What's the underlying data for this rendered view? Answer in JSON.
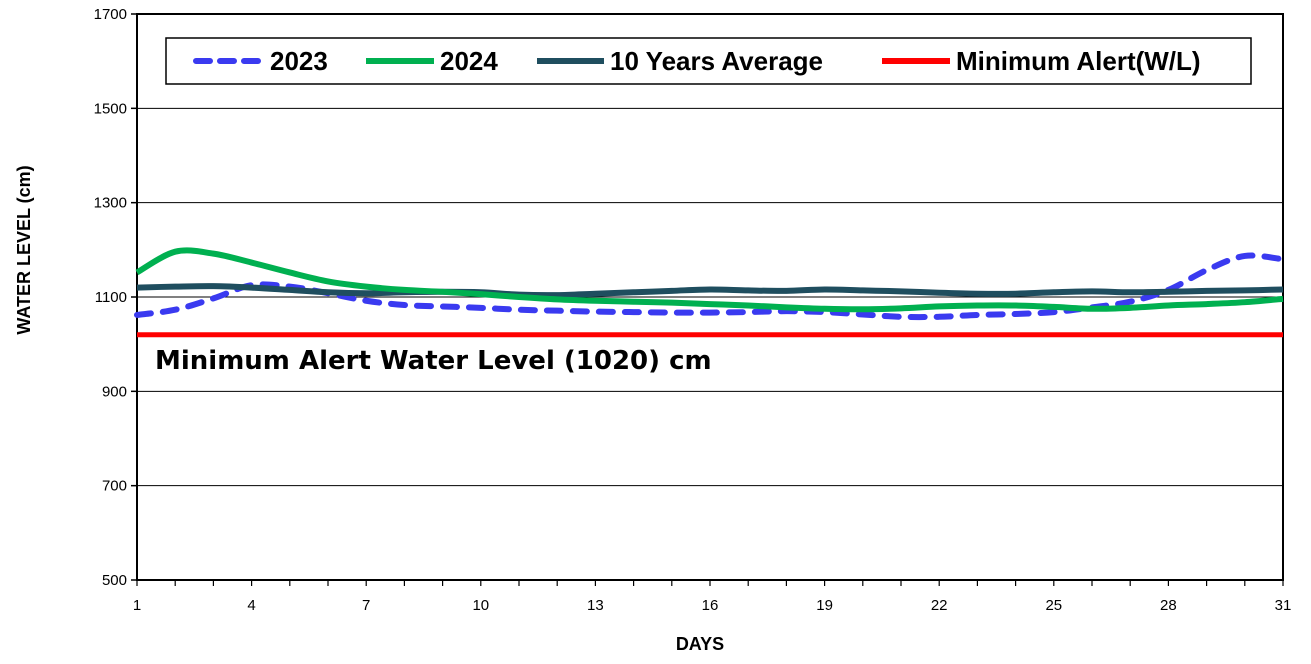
{
  "chart_data": {
    "type": "line",
    "xlabel": "DAYS",
    "ylabel": "WATER LEVEL (cm)",
    "xlim": [
      1,
      31
    ],
    "ylim": [
      500,
      1700
    ],
    "x_ticks": [
      1,
      4,
      7,
      10,
      13,
      16,
      19,
      22,
      25,
      28,
      31
    ],
    "y_ticks": [
      500,
      700,
      900,
      1100,
      1300,
      1500,
      1700
    ],
    "legend_position": "top",
    "annotation": "Minimum Alert Water Level (1020) cm",
    "series": [
      {
        "name": "2023",
        "color": "#3a3af0",
        "style": "dashed",
        "x": [
          1,
          2,
          3,
          4,
          5,
          6,
          7,
          8,
          9,
          10,
          11,
          12,
          13,
          14,
          15,
          16,
          17,
          18,
          19,
          20,
          21,
          22,
          23,
          24,
          25,
          26,
          27,
          28,
          29,
          30,
          31
        ],
        "values": [
          1062,
          1073,
          1097,
          1125,
          1122,
          1108,
          1092,
          1083,
          1080,
          1077,
          1073,
          1071,
          1069,
          1068,
          1067,
          1067,
          1068,
          1070,
          1068,
          1063,
          1058,
          1058,
          1062,
          1064,
          1068,
          1078,
          1090,
          1115,
          1157,
          1187,
          1180
        ]
      },
      {
        "name": "2024",
        "color": "#00b050",
        "style": "solid",
        "x": [
          1,
          2,
          3,
          4,
          5,
          6,
          7,
          8,
          9,
          10,
          11,
          12,
          13,
          14,
          15,
          16,
          17,
          18,
          19,
          20,
          21,
          22,
          23,
          24,
          25,
          26,
          27,
          28,
          29,
          30,
          31
        ],
        "values": [
          1152,
          1196,
          1192,
          1173,
          1152,
          1133,
          1122,
          1115,
          1111,
          1106,
          1100,
          1095,
          1092,
          1090,
          1088,
          1085,
          1082,
          1078,
          1075,
          1074,
          1076,
          1080,
          1082,
          1082,
          1079,
          1075,
          1077,
          1082,
          1085,
          1089,
          1096
        ]
      },
      {
        "name": "10 Years Average",
        "color": "#1f4e5f",
        "style": "solid",
        "x": [
          1,
          2,
          3,
          4,
          5,
          6,
          7,
          8,
          9,
          10,
          11,
          12,
          13,
          14,
          15,
          16,
          17,
          18,
          19,
          20,
          21,
          22,
          23,
          24,
          25,
          26,
          27,
          28,
          29,
          30,
          31
        ],
        "values": [
          1120,
          1122,
          1123,
          1120,
          1115,
          1110,
          1108,
          1110,
          1111,
          1110,
          1105,
          1104,
          1107,
          1110,
          1113,
          1116,
          1114,
          1113,
          1116,
          1114,
          1112,
          1109,
          1107,
          1107,
          1110,
          1112,
          1110,
          1111,
          1113,
          1114,
          1116
        ]
      },
      {
        "name": "Minimum Alert(W/L)",
        "color": "#ff0000",
        "style": "solid",
        "x": [
          1,
          31
        ],
        "values": [
          1020,
          1020
        ]
      }
    ]
  }
}
